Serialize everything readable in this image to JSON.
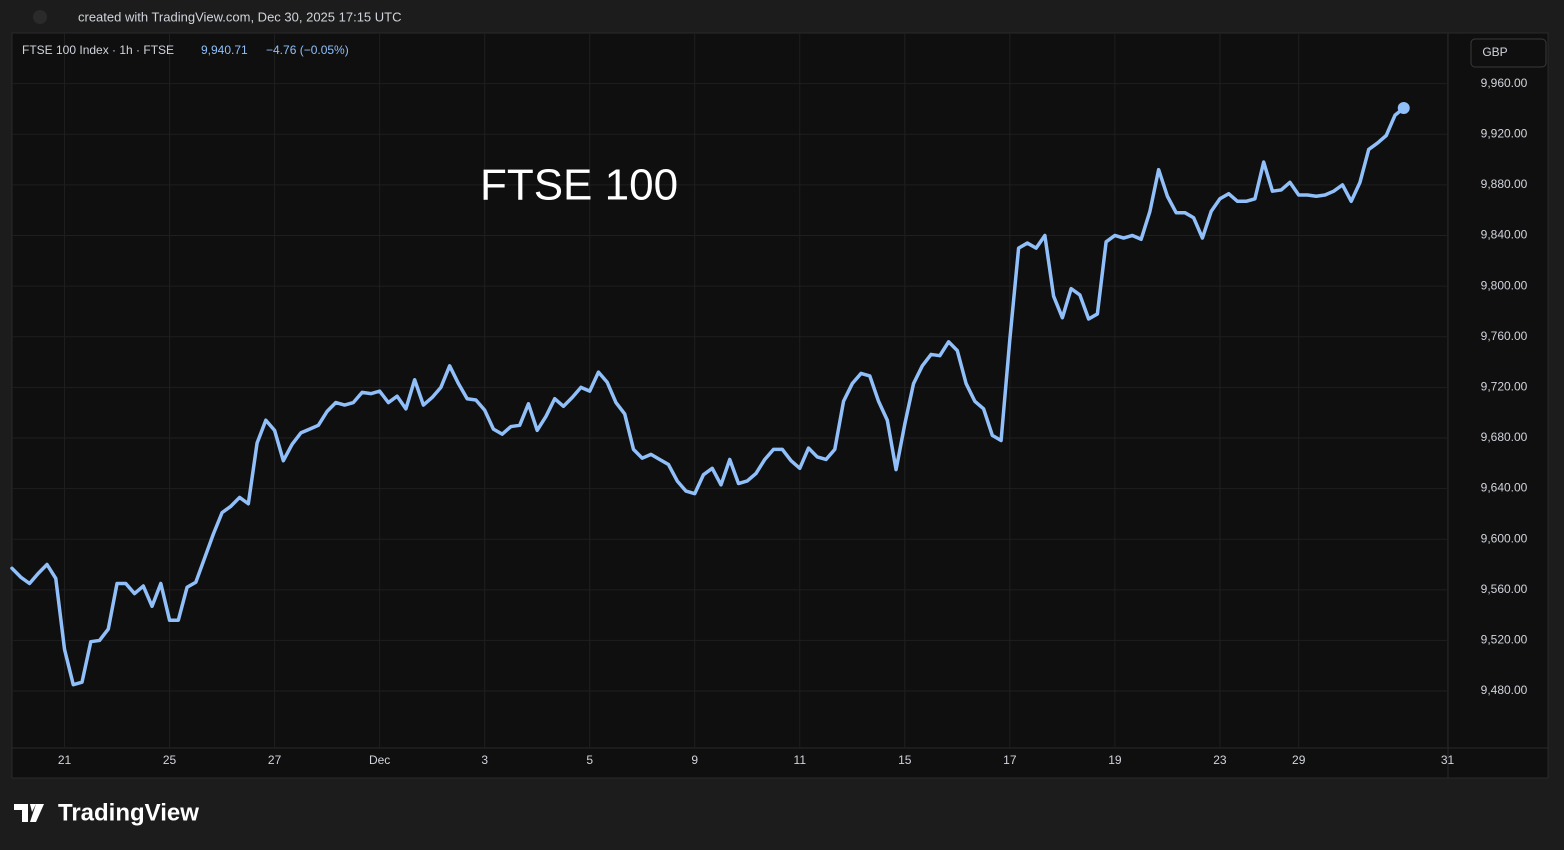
{
  "header": {
    "text": "created with TradingView.com, Dec 30, 2025 17:15 UTC"
  },
  "legend": {
    "symbol": "FTSE 100 Index · 1h · FTSE",
    "price": "9,940.71",
    "change": "−4.76 (−0.05%)"
  },
  "currency": "GBP",
  "footer": {
    "brand": "TradingView"
  },
  "chart_data": {
    "type": "line",
    "title": "FTSE 100",
    "categories": [
      null,
      null,
      null,
      null,
      null,
      null,
      "21",
      null,
      null,
      null,
      null,
      null,
      null,
      null,
      null,
      null,
      null,
      null,
      "25",
      null,
      null,
      null,
      null,
      null,
      null,
      null,
      null,
      null,
      null,
      null,
      "27",
      null,
      null,
      null,
      null,
      null,
      null,
      null,
      null,
      null,
      null,
      null,
      "Dec",
      null,
      null,
      null,
      null,
      null,
      null,
      null,
      null,
      null,
      null,
      null,
      "3",
      null,
      null,
      null,
      null,
      null,
      null,
      null,
      null,
      null,
      null,
      null,
      "5",
      null,
      null,
      null,
      null,
      null,
      null,
      null,
      null,
      null,
      null,
      null,
      "9",
      null,
      null,
      null,
      null,
      null,
      null,
      null,
      null,
      null,
      null,
      null,
      "11",
      null,
      null,
      null,
      null,
      null,
      null,
      null,
      null,
      null,
      null,
      null,
      "15",
      null,
      null,
      null,
      null,
      null,
      null,
      null,
      null,
      null,
      null,
      null,
      "17",
      null,
      null,
      null,
      null,
      null,
      null,
      null,
      null,
      null,
      null,
      null,
      "19",
      null,
      null,
      null,
      null,
      null,
      null,
      null,
      null,
      null,
      null,
      null,
      "23",
      null,
      null,
      null,
      null,
      null,
      null,
      null,
      null,
      "29",
      null,
      null,
      null,
      null,
      null,
      null,
      null,
      null,
      null,
      null,
      null,
      null,
      null,
      null,
      null,
      null,
      "31"
    ],
    "series": [
      {
        "name": "FTSE 100 Index",
        "color": "#90bff9",
        "values": [
          9577,
          9570,
          9565,
          9573,
          9580,
          9569,
          9513,
          9485,
          9487,
          9519,
          9520,
          9529,
          9565,
          9565,
          9557,
          9563,
          9547,
          9565,
          9536,
          9536,
          9562,
          9566,
          9585,
          9604,
          9621,
          9626,
          9633,
          9628,
          9676,
          9694,
          9686,
          9662,
          9675,
          9684,
          9687,
          9690,
          9701,
          9708,
          9706,
          9708,
          9716,
          9715,
          9717,
          9708,
          9713,
          9703,
          9726,
          9706,
          9712,
          9720,
          9737,
          9723,
          9711,
          9710,
          9702,
          9687,
          9683,
          9689,
          9690,
          9707,
          9686,
          9697,
          9711,
          9705,
          9712,
          9720,
          9717,
          9732,
          9724,
          9708,
          9699,
          9671,
          9664,
          9667,
          9663,
          9659,
          9646,
          9638,
          9636,
          9651,
          9656,
          9643,
          9663,
          9644,
          9646,
          9652,
          9663,
          9671,
          9671,
          9662,
          9656,
          9672,
          9665,
          9663,
          9671,
          9709,
          9723,
          9731,
          9729,
          9709,
          9694,
          9655,
          9691,
          9723,
          9737,
          9746,
          9745,
          9756,
          9749,
          9723,
          9709,
          9703,
          9682,
          9678,
          9758,
          9830,
          9834,
          9830,
          9840,
          9792,
          9775,
          9798,
          9793,
          9774,
          9778,
          9835,
          9840,
          9838,
          9840,
          9837,
          9859,
          9892,
          9871,
          9858,
          9858,
          9854,
          9838,
          9859,
          9869,
          9873,
          9867,
          9867,
          9869,
          9898,
          9875,
          9876,
          9882,
          9872,
          9872,
          9871,
          9872,
          9875,
          9880,
          9867,
          9882,
          9908,
          9913,
          9919,
          9935,
          9940.71,
          null,
          null,
          null,
          null,
          null
        ]
      }
    ],
    "ylim": [
      9435,
      10000
    ],
    "yticks": [
      {
        "value": 9480,
        "label": "9,480.00"
      },
      {
        "value": 9520,
        "label": "9,520.00"
      },
      {
        "value": 9560,
        "label": "9,560.00"
      },
      {
        "value": 9600,
        "label": "9,600.00"
      },
      {
        "value": 9640,
        "label": "9,640.00"
      },
      {
        "value": 9680,
        "label": "9,680.00"
      },
      {
        "value": 9720,
        "label": "9,720.00"
      },
      {
        "value": 9760,
        "label": "9,760.00"
      },
      {
        "value": 9800,
        "label": "9,800.00"
      },
      {
        "value": 9840,
        "label": "9,840.00"
      },
      {
        "value": 9880,
        "label": "9,880.00"
      },
      {
        "value": 9920,
        "label": "9,920.00"
      },
      {
        "value": 9960,
        "label": "9,960.00"
      }
    ],
    "grid": true
  }
}
